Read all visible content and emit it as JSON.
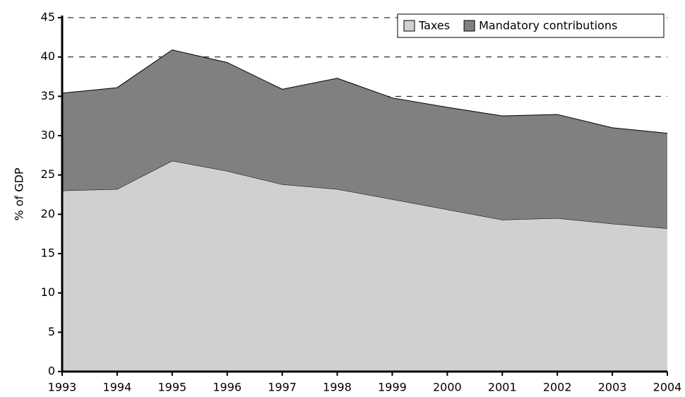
{
  "chart_data": {
    "type": "stacked_area",
    "y_label": "% of GDP",
    "categories": [
      "1993",
      "1994",
      "1995",
      "1996",
      "1997",
      "1998",
      "1999",
      "2000",
      "2001",
      "2002",
      "2003",
      "2004"
    ],
    "series": [
      {
        "name": "Taxes",
        "color": "#d0d0d0",
        "values": [
          23,
          23.2,
          26.8,
          25.5,
          23.8,
          23.2,
          21.9,
          20.6,
          19.3,
          19.5,
          18.8,
          18.2
        ]
      },
      {
        "name": "Mandatory contributions",
        "color": "#808080",
        "values": [
          12.4,
          12.9,
          14.1,
          13.8,
          12.1,
          14.1,
          12.9,
          13.0,
          13.2,
          13.2,
          12.2,
          12.1
        ]
      }
    ],
    "ylim": [
      0,
      45
    ],
    "yticks": [
      0,
      5,
      10,
      15,
      20,
      25,
      30,
      35,
      40,
      45
    ],
    "grid": true,
    "legend": "top-right"
  }
}
